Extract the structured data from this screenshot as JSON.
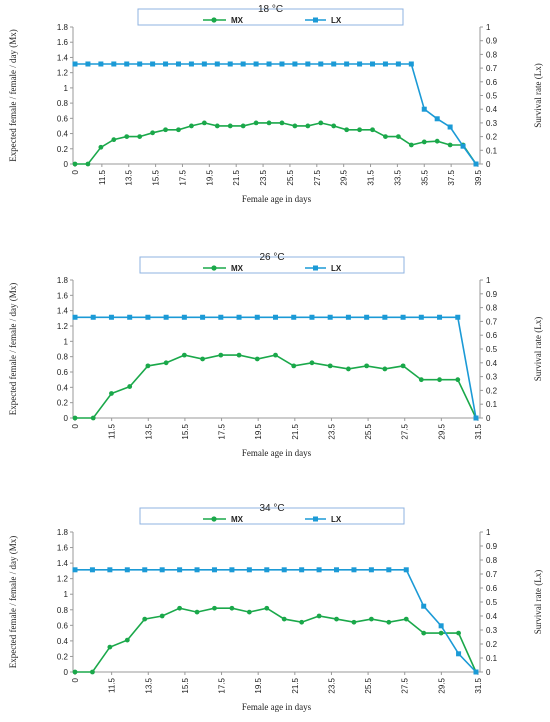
{
  "chart_data": [
    {
      "type": "line",
      "title": "18 °C",
      "xlabel": "Female age in days",
      "ylabel": "Expected female / female / day (Mx)",
      "ylabel_right": "Survival rate (Lx)",
      "ylim": [
        0,
        1.8
      ],
      "ylim_right": [
        0,
        1
      ],
      "yticks": [
        "0",
        "0.2",
        "0.4",
        "0.6",
        "0.8",
        "1",
        "1.2",
        "1.4",
        "1.6",
        "1.8"
      ],
      "yticks_right": [
        "0",
        "0.1",
        "0.2",
        "0.3",
        "0.4",
        "0.5",
        "0.6",
        "0.7",
        "0.8",
        "0.9",
        "1"
      ],
      "x_tick_labels": [
        "0",
        "11.5",
        "13.5",
        "15.5",
        "17.5",
        "19.5",
        "21.5",
        "23.5",
        "25.5",
        "27.5",
        "29.5",
        "31.5",
        "33.5",
        "35.5",
        "37.5",
        "39.5"
      ],
      "legend_position": "top-center",
      "series": [
        {
          "name": "MX",
          "axis": "left",
          "color": "#1aa84a",
          "marker": "circle",
          "values": [
            0,
            0,
            0.22,
            0.32,
            0.36,
            0.36,
            0.41,
            0.45,
            0.45,
            0.5,
            0.54,
            0.5,
            0.5,
            0.5,
            0.54,
            0.54,
            0.54,
            0.5,
            0.5,
            0.54,
            0.5,
            0.45,
            0.45,
            0.45,
            0.36,
            0.36,
            0.25,
            0.29,
            0.3,
            0.25,
            0.25,
            0
          ]
        },
        {
          "name": "LX",
          "axis": "right",
          "color": "#1b9ad6",
          "marker": "square",
          "values": [
            0.73,
            0.73,
            0.73,
            0.73,
            0.73,
            0.73,
            0.73,
            0.73,
            0.73,
            0.73,
            0.73,
            0.73,
            0.73,
            0.73,
            0.73,
            0.73,
            0.73,
            0.73,
            0.73,
            0.73,
            0.73,
            0.73,
            0.73,
            0.73,
            0.73,
            0.73,
            0.73,
            0.4,
            0.33,
            0.27,
            0.13,
            0
          ]
        }
      ]
    },
    {
      "type": "line",
      "title": "26 °C",
      "xlabel": "Female age in days",
      "ylabel": "Expected female / female / day (Mx)",
      "ylabel_right": "Survival rate (Lx)",
      "ylim": [
        0,
        1.8
      ],
      "ylim_right": [
        0,
        1
      ],
      "yticks": [
        "0",
        "0.2",
        "0.4",
        "0.6",
        "0.8",
        "1",
        "1.2",
        "1.4",
        "1.6",
        "1.8"
      ],
      "yticks_right": [
        "0",
        "0.1",
        "0.2",
        "0.3",
        "0.4",
        "0.5",
        "0.6",
        "0.7",
        "0.8",
        "0.9",
        "1"
      ],
      "x_tick_labels": [
        "0",
        "11.5",
        "13.5",
        "15.5",
        "17.5",
        "19.5",
        "21.5",
        "23.5",
        "25.5",
        "27.5",
        "29.5",
        "31.5"
      ],
      "legend_position": "top-center",
      "series": [
        {
          "name": "MX",
          "axis": "left",
          "color": "#1aa84a",
          "marker": "circle",
          "values": [
            0,
            0,
            0.32,
            0.41,
            0.68,
            0.72,
            0.82,
            0.77,
            0.82,
            0.82,
            0.77,
            0.82,
            0.68,
            0.72,
            0.68,
            0.64,
            0.68,
            0.64,
            0.68,
            0.5,
            0.5,
            0.5,
            0
          ]
        },
        {
          "name": "LX",
          "axis": "right",
          "color": "#1b9ad6",
          "marker": "square",
          "values": [
            0.73,
            0.73,
            0.73,
            0.73,
            0.73,
            0.73,
            0.73,
            0.73,
            0.73,
            0.73,
            0.73,
            0.73,
            0.73,
            0.73,
            0.73,
            0.73,
            0.73,
            0.73,
            0.73,
            0.73,
            0.73,
            0.73,
            0
          ]
        }
      ]
    },
    {
      "type": "line",
      "title": "34 °C",
      "xlabel": "Female age in days",
      "ylabel": "Expected female / female / day (Mx)",
      "ylabel_right": "Survival rate (Lx)",
      "ylim": [
        0,
        1.8
      ],
      "ylim_right": [
        0,
        1
      ],
      "yticks": [
        "0",
        "0.2",
        "0.4",
        "0.6",
        "0.8",
        "1",
        "1.2",
        "1.4",
        "1.6",
        "1.8"
      ],
      "yticks_right": [
        "0",
        "0.1",
        "0.2",
        "0.3",
        "0.4",
        "0.5",
        "0.6",
        "0.7",
        "0.8",
        "0.9",
        "1"
      ],
      "x_tick_labels": [
        "0",
        "11.5",
        "13.5",
        "15.5",
        "17.5",
        "19.5",
        "21.5",
        "23.5",
        "25.5",
        "27.5",
        "29.5",
        "31.5"
      ],
      "legend_position": "top-center",
      "series": [
        {
          "name": "MX",
          "axis": "left",
          "color": "#1aa84a",
          "marker": "circle",
          "values": [
            0,
            0,
            0.32,
            0.41,
            0.68,
            0.72,
            0.82,
            0.77,
            0.82,
            0.82,
            0.77,
            0.82,
            0.68,
            0.64,
            0.72,
            0.68,
            0.64,
            0.68,
            0.64,
            0.68,
            0.5,
            0.5,
            0.5,
            0
          ]
        },
        {
          "name": "LX",
          "axis": "right",
          "color": "#1b9ad6",
          "marker": "square",
          "values": [
            0.73,
            0.73,
            0.73,
            0.73,
            0.73,
            0.73,
            0.73,
            0.73,
            0.73,
            0.73,
            0.73,
            0.73,
            0.73,
            0.73,
            0.73,
            0.73,
            0.73,
            0.73,
            0.73,
            0.73,
            0.47,
            0.33,
            0.13,
            0
          ]
        }
      ]
    }
  ]
}
